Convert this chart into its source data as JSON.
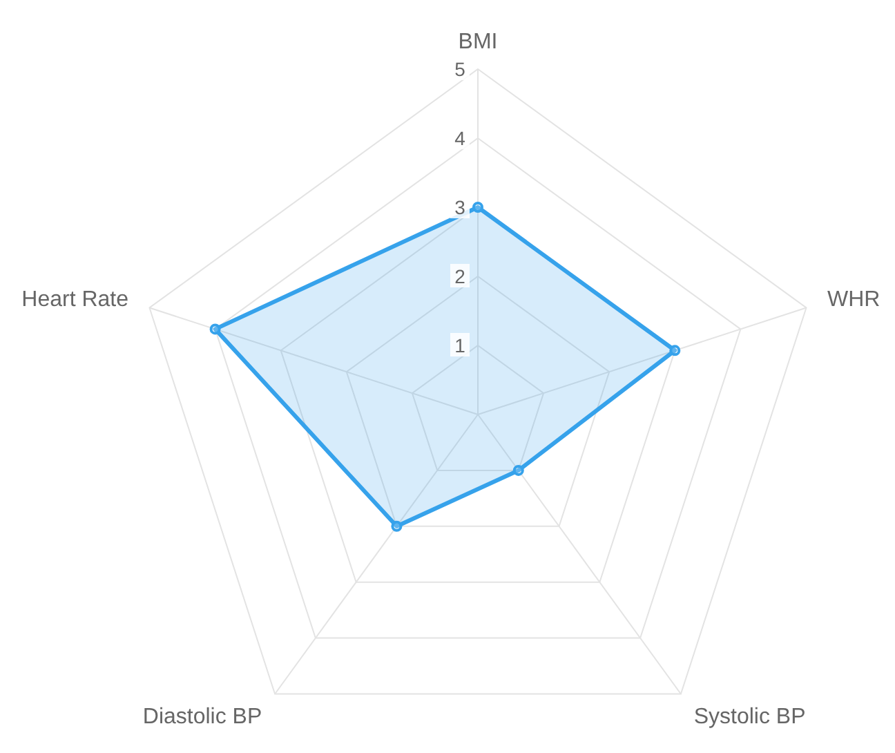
{
  "chart_data": {
    "type": "radar",
    "categories": [
      "BMI",
      "WHR",
      "Systolic BP",
      "Diastolic BP",
      "Heart Rate"
    ],
    "series": [
      {
        "color": "#36a2eb",
        "values": [
          3,
          3,
          1,
          2,
          4
        ]
      }
    ],
    "ylim": [
      0,
      5
    ],
    "yticks": [
      1,
      2,
      3,
      4,
      5
    ],
    "grid": true,
    "marker": "circle",
    "legend": false
  }
}
